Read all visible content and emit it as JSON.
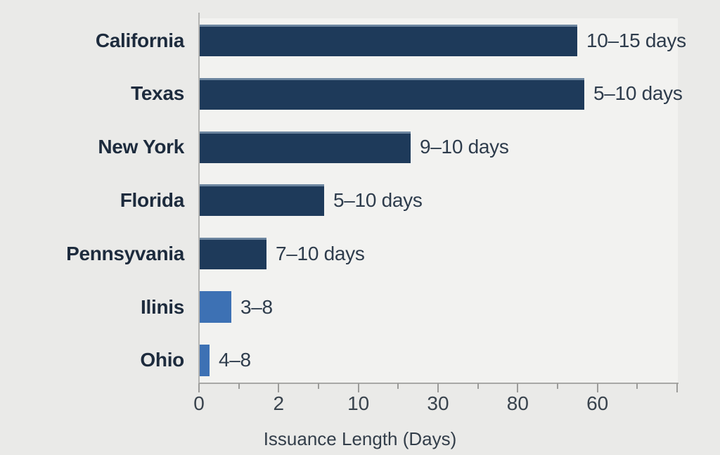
{
  "colors": {
    "page_bg": "#eaeae8",
    "plot_bg": "#f2f2f0",
    "axis_line": "#a8a8a6",
    "y_axis_line": "#b4b4b2",
    "tick": "#9c9c9a",
    "bar_dark": "#1e3a5a",
    "bar_light": "#3d71b4",
    "category_label": "#1d2b3d",
    "value_label": "#2e3c4c",
    "tick_label": "#39434d",
    "axis_title": "#333e4a"
  },
  "chart_data": {
    "type": "bar",
    "orientation": "horizontal",
    "title": "",
    "xlabel": "Issuance Length (Days)",
    "x_axis": {
      "tick_labels": [
        "0",
        "2",
        "10",
        "30",
        "80",
        "60"
      ],
      "minor_ticks_between_majors": 1,
      "trailing_unlabeled_major_tick": true
    },
    "categories": [
      "California",
      "Texas",
      "New York",
      "Florida",
      "Pennsyvania",
      "Ilinis",
      "Ohio"
    ],
    "bars": [
      {
        "category": "California",
        "value_label": "10–15 days",
        "length_frac": 0.79,
        "color_key": "dark"
      },
      {
        "category": "Texas",
        "value_label": "5–10 days",
        "length_frac": 0.804,
        "color_key": "dark"
      },
      {
        "category": "New York",
        "value_label": "9–10 days",
        "length_frac": 0.441,
        "color_key": "dark"
      },
      {
        "category": "Florida",
        "value_label": "5–10 days",
        "length_frac": 0.26,
        "color_key": "dark"
      },
      {
        "category": "Pennsyvania",
        "value_label": "7–10 days",
        "length_frac": 0.14,
        "color_key": "dark"
      },
      {
        "category": "Ilinis",
        "value_label": "3–8",
        "length_frac": 0.066,
        "color_key": "light"
      },
      {
        "category": "Ohio",
        "value_label": "4–8",
        "length_frac": 0.021,
        "color_key": "light"
      }
    ]
  }
}
